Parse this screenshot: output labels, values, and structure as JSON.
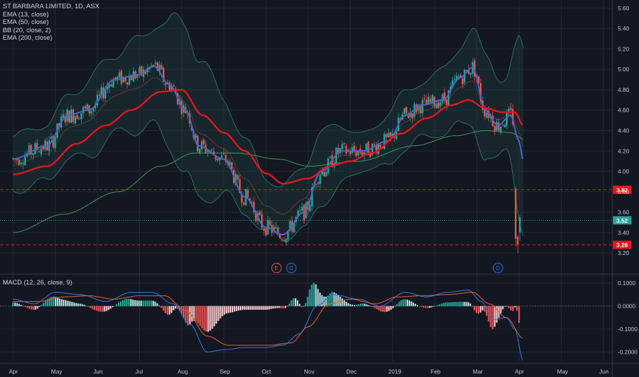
{
  "legend": {
    "title": "ST BARBARA LIMITED, 1D, ASX",
    "ema13": "EMA (13, close)",
    "ema50": "EMA (50, close)",
    "bb": "BB (20, close, 2)",
    "ema200": "EMA (200, close)"
  },
  "macd_legend": "MACD (12, 26, close, 9)",
  "colors": {
    "background": "#131722",
    "grid": "#232733",
    "up": "#26a69a",
    "down": "#ef5350",
    "ema13": "#4a67c9",
    "ema50": "#e8141b",
    "ema200": "#3f9a5c",
    "bb": "#2a6e6a",
    "bb_fill": "#1c3a3b",
    "macd_line": "#2a75d9",
    "signal_line": "#e05a2b",
    "resistance": "#e8141b",
    "last_price": "#26a69a"
  },
  "chart_data": [
    {
      "type": "candlestick",
      "title": "ST BARBARA LIMITED, 1D, ASX",
      "x_ticks": [
        "Apr",
        "May",
        "Jun",
        "Jul",
        "Aug",
        "Sep",
        "Oct",
        "Nov",
        "Dec",
        "2019",
        "Feb",
        "Mar",
        "Apr",
        "May",
        "Jun"
      ],
      "y_ticks": [
        "5.60",
        "5.40",
        "5.20",
        "5.00",
        "4.80",
        "4.60",
        "4.40",
        "4.20",
        "4.00",
        "3.80",
        "3.60",
        "3.40",
        "3.20"
      ],
      "ylim": [
        3.14,
        5.68
      ],
      "price_tags": [
        {
          "label": "3.82",
          "value": 3.82,
          "style": "resistance"
        },
        {
          "label": "3.52",
          "value": 3.52,
          "style": "last"
        },
        {
          "label": "3.28",
          "value": 3.28,
          "style": "resistance"
        }
      ],
      "event_markers": [
        {
          "label": "E",
          "month_pos": 6.25,
          "color": "#ef5350"
        },
        {
          "label": "D",
          "month_pos": 6.6,
          "color": "#2a75d9"
        },
        {
          "label": "D",
          "month_pos": 11.5,
          "color": "#2a75d9"
        }
      ],
      "ema13_anchors": [
        [
          0,
          4.12
        ],
        [
          0.8,
          4.25
        ],
        [
          1.3,
          4.55
        ],
        [
          1.8,
          4.6
        ],
        [
          2.4,
          4.9
        ],
        [
          3,
          4.95
        ],
        [
          3.35,
          5.03
        ],
        [
          3.7,
          4.85
        ],
        [
          4.1,
          4.6
        ],
        [
          4.4,
          4.25
        ],
        [
          5,
          4.12
        ],
        [
          5.5,
          3.75
        ],
        [
          6,
          3.45
        ],
        [
          6.4,
          3.38
        ],
        [
          6.9,
          3.6
        ],
        [
          7.3,
          4.0
        ],
        [
          7.8,
          4.2
        ],
        [
          8.3,
          4.2
        ],
        [
          8.9,
          4.3
        ],
        [
          9.3,
          4.55
        ],
        [
          9.7,
          4.65
        ],
        [
          10.2,
          4.7
        ],
        [
          10.6,
          4.92
        ],
        [
          10.9,
          5.02
        ],
        [
          11.2,
          4.6
        ],
        [
          11.5,
          4.45
        ],
        [
          11.8,
          4.55
        ],
        [
          12.0,
          4.3
        ],
        [
          12.1,
          4.1
        ]
      ],
      "ema50_anchors": [
        [
          0,
          3.97
        ],
        [
          0.8,
          4.05
        ],
        [
          1.5,
          4.27
        ],
        [
          2.2,
          4.45
        ],
        [
          2.8,
          4.6
        ],
        [
          3.5,
          4.78
        ],
        [
          4.0,
          4.8
        ],
        [
          4.5,
          4.55
        ],
        [
          5,
          4.38
        ],
        [
          5.5,
          4.2
        ],
        [
          6,
          3.98
        ],
        [
          6.4,
          3.88
        ],
        [
          7.0,
          3.93
        ],
        [
          7.5,
          4.05
        ],
        [
          8,
          4.1
        ],
        [
          8.5,
          4.18
        ],
        [
          9.2,
          4.37
        ],
        [
          9.8,
          4.52
        ],
        [
          10.4,
          4.65
        ],
        [
          10.8,
          4.7
        ],
        [
          11.2,
          4.62
        ],
        [
          11.6,
          4.58
        ],
        [
          11.9,
          4.58
        ],
        [
          12.1,
          4.45
        ]
      ],
      "ema200_anchors": [
        [
          0,
          3.4
        ],
        [
          1.2,
          3.58
        ],
        [
          2.5,
          3.8
        ],
        [
          3.5,
          4.05
        ],
        [
          4.3,
          4.18
        ],
        [
          5.3,
          4.18
        ],
        [
          6.3,
          4.12
        ],
        [
          7,
          4.05
        ],
        [
          8.2,
          4.1
        ],
        [
          9.5,
          4.25
        ],
        [
          10.5,
          4.35
        ],
        [
          11.2,
          4.4
        ],
        [
          11.8,
          4.38
        ],
        [
          12.1,
          4.32
        ]
      ],
      "bb_width_anchors": [
        [
          0,
          0.28
        ],
        [
          1,
          0.3
        ],
        [
          2,
          0.4
        ],
        [
          3,
          0.45
        ],
        [
          3.6,
          0.6
        ],
        [
          4.2,
          0.8
        ],
        [
          5,
          0.5
        ],
        [
          5.6,
          0.35
        ],
        [
          6.3,
          0.25
        ],
        [
          7,
          0.35
        ],
        [
          7.6,
          0.35
        ],
        [
          8.3,
          0.18
        ],
        [
          9,
          0.28
        ],
        [
          10,
          0.3
        ],
        [
          10.8,
          0.45
        ],
        [
          11.3,
          0.55
        ],
        [
          11.7,
          0.35
        ],
        [
          12.1,
          0.95
        ]
      ],
      "candles_seed": 7
    },
    {
      "type": "macd",
      "title": "MACD (12, 26, close, 9)",
      "y_ticks": [
        "0.1000",
        "0.0000",
        "-0.1000",
        "-0.2000"
      ],
      "ylim": [
        -0.24,
        0.13
      ],
      "macd_anchors": [
        [
          0,
          0.03
        ],
        [
          0.5,
          0.01
        ],
        [
          1,
          0.06
        ],
        [
          1.6,
          0.05
        ],
        [
          2.2,
          0.02
        ],
        [
          2.8,
          0.06
        ],
        [
          3.3,
          0.06
        ],
        [
          3.8,
          0.01
        ],
        [
          4.2,
          -0.08
        ],
        [
          4.6,
          -0.2
        ],
        [
          5,
          -0.19
        ],
        [
          5.5,
          -0.18
        ],
        [
          6,
          -0.18
        ],
        [
          6.4,
          -0.17
        ],
        [
          6.8,
          -0.12
        ],
        [
          7.2,
          0.0
        ],
        [
          7.6,
          0.05
        ],
        [
          8.2,
          0.03
        ],
        [
          8.7,
          0.0
        ],
        [
          9.3,
          0.06
        ],
        [
          9.8,
          0.04
        ],
        [
          10.3,
          0.06
        ],
        [
          10.8,
          0.07
        ],
        [
          11.1,
          0.02
        ],
        [
          11.4,
          -0.06
        ],
        [
          11.7,
          -0.05
        ],
        [
          11.9,
          -0.1
        ],
        [
          12.1,
          -0.24
        ]
      ],
      "signal_anchors": [
        [
          0,
          0.02
        ],
        [
          0.6,
          0.02
        ],
        [
          1.2,
          0.04
        ],
        [
          1.8,
          0.045
        ],
        [
          2.4,
          0.03
        ],
        [
          3,
          0.045
        ],
        [
          3.6,
          0.045
        ],
        [
          4.1,
          -0.02
        ],
        [
          4.6,
          -0.13
        ],
        [
          5.1,
          -0.17
        ],
        [
          5.6,
          -0.17
        ],
        [
          6.1,
          -0.17
        ],
        [
          6.6,
          -0.16
        ],
        [
          7.0,
          -0.09
        ],
        [
          7.5,
          0.01
        ],
        [
          8,
          0.03
        ],
        [
          8.6,
          0.01
        ],
        [
          9.1,
          0.04
        ],
        [
          9.7,
          0.045
        ],
        [
          10.3,
          0.05
        ],
        [
          10.9,
          0.06
        ],
        [
          11.3,
          0.01
        ],
        [
          11.7,
          -0.05
        ],
        [
          12.1,
          -0.14
        ]
      ]
    }
  ]
}
